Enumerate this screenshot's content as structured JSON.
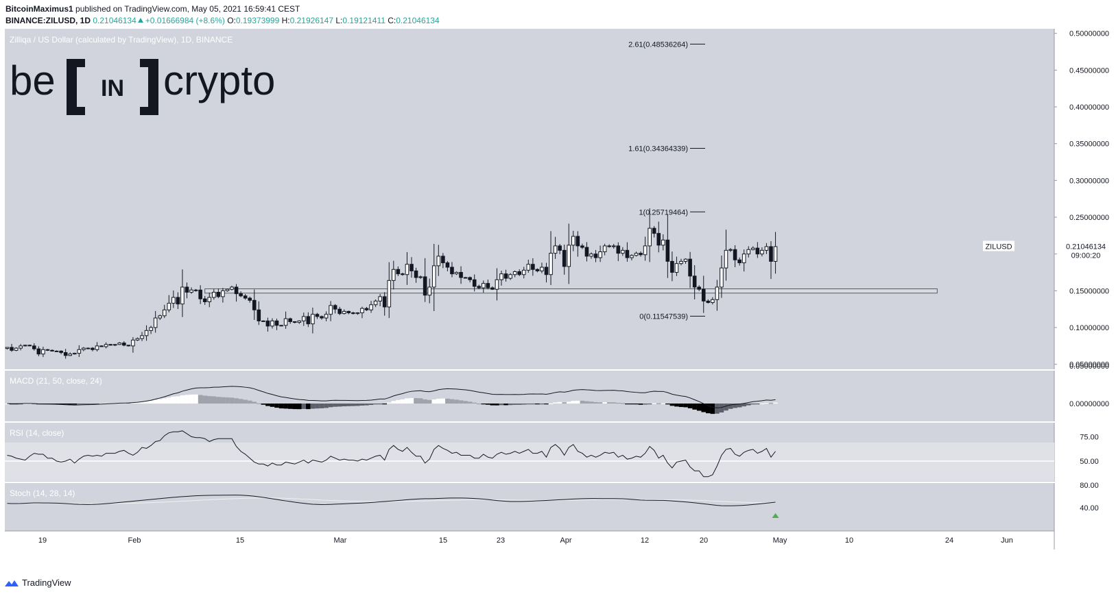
{
  "header": {
    "author": "BitcoinMaximus1",
    "published_text": "published on TradingView.com, May 05, 2021 16:59:41 CEST",
    "symbol_line": "BINANCE:ZILUSD, 1D",
    "last": "0.21046134",
    "change": "+0.01666984 (+8.6%)",
    "o_label": "O:",
    "o": "0.19373999",
    "h_label": "H:",
    "h": "0.21926147",
    "l_label": "L:",
    "l": "0.19121411",
    "c_label": "C:",
    "c": "0.21046134"
  },
  "footer": {
    "brand": "TradingView"
  },
  "colors": {
    "bg": "#d1d4dc",
    "plot": "#d1d4dc",
    "up_fill": "#ffffff",
    "down_fill": "#131722",
    "accent": "#26a69a",
    "signal": "#4caf50"
  },
  "chart_data": {
    "type": "candlestick",
    "title": "Zilliqa / US Dollar (calculated by TradingView), 1D, BINANCE",
    "currency": "USD",
    "watermark": "be[IN]crypto",
    "price_axis": [
      "0.50000000",
      "0.45000000",
      "0.40000000",
      "0.35000000",
      "0.30000000",
      "0.25000000",
      "0.20000000",
      "0.15000000",
      "0.10000000",
      "0.05000000"
    ],
    "ylim": [
      0.0423,
      0.5062
    ],
    "time_axis": [
      "19",
      "Feb",
      "15",
      "Mar",
      "15",
      "23",
      "Apr",
      "12",
      "20",
      "May",
      "10",
      "24",
      "Jun"
    ],
    "last_price_label": {
      "symbol": "ZILUSD",
      "price": "0.21046134",
      "countdown": "09:00:20",
      "value": 0.21046134
    },
    "support_zone": {
      "low": 0.1468,
      "high": 0.1526,
      "from_index": 44,
      "to_index": 207
    },
    "fib_levels": [
      {
        "label": "2.61(0.48536264)",
        "value": 0.48536264
      },
      {
        "label": "1.61(0.34364339)",
        "value": 0.34364339
      },
      {
        "label": "1(0.25719464)",
        "value": 0.25719464
      },
      {
        "label": "0(0.11547539)",
        "value": 0.11547539
      }
    ],
    "closes": [
      0.073,
      0.069,
      0.072,
      0.075,
      0.076,
      0.075,
      0.071,
      0.064,
      0.07,
      0.069,
      0.068,
      0.068,
      0.066,
      0.062,
      0.064,
      0.065,
      0.07,
      0.072,
      0.072,
      0.07,
      0.075,
      0.074,
      0.077,
      0.076,
      0.077,
      0.079,
      0.076,
      0.075,
      0.083,
      0.085,
      0.089,
      0.096,
      0.1,
      0.113,
      0.116,
      0.124,
      0.133,
      0.141,
      0.132,
      0.155,
      0.148,
      0.151,
      0.151,
      0.139,
      0.135,
      0.141,
      0.148,
      0.142,
      0.15,
      0.152,
      0.155,
      0.146,
      0.143,
      0.14,
      0.137,
      0.124,
      0.109,
      0.109,
      0.102,
      0.109,
      0.103,
      0.103,
      0.112,
      0.108,
      0.107,
      0.109,
      0.115,
      0.105,
      0.118,
      0.115,
      0.113,
      0.118,
      0.13,
      0.125,
      0.119,
      0.122,
      0.12,
      0.119,
      0.12,
      0.126,
      0.124,
      0.131,
      0.136,
      0.142,
      0.128,
      0.164,
      0.179,
      0.173,
      0.172,
      0.186,
      0.177,
      0.168,
      0.169,
      0.144,
      0.155,
      0.184,
      0.197,
      0.188,
      0.182,
      0.173,
      0.175,
      0.168,
      0.168,
      0.165,
      0.156,
      0.154,
      0.16,
      0.154,
      0.152,
      0.165,
      0.173,
      0.167,
      0.172,
      0.176,
      0.172,
      0.178,
      0.186,
      0.179,
      0.177,
      0.182,
      0.172,
      0.201,
      0.211,
      0.205,
      0.183,
      0.212,
      0.224,
      0.211,
      0.209,
      0.197,
      0.2,
      0.195,
      0.203,
      0.211,
      0.21,
      0.211,
      0.201,
      0.205,
      0.195,
      0.198,
      0.201,
      0.199,
      0.211,
      0.235,
      0.228,
      0.212,
      0.219,
      0.19,
      0.175,
      0.187,
      0.19,
      0.193,
      0.17,
      0.155,
      0.152,
      0.136,
      0.134,
      0.138,
      0.155,
      0.181,
      0.205,
      0.206,
      0.192,
      0.188,
      0.2,
      0.206,
      0.208,
      0.2,
      0.205,
      0.21,
      0.19,
      0.21
    ],
    "macd": {
      "params": "MACD (21, 50, close, 24)",
      "axis": [
        "0.05000000",
        "0.00000000"
      ]
    },
    "rsi": {
      "params": "RSI (14, close)",
      "axis": [
        "75.00",
        "50.00"
      ],
      "values": [
        56,
        55,
        53,
        52,
        51,
        55,
        58,
        57,
        57,
        53,
        53,
        50,
        49,
        50,
        52,
        48,
        52,
        55,
        56,
        55,
        56,
        55,
        58,
        58,
        58,
        60,
        61,
        58,
        56,
        59,
        64,
        63,
        66,
        70,
        71,
        76,
        79,
        80,
        80,
        81,
        78,
        75,
        74,
        74,
        73,
        70,
        72,
        73,
        73,
        73,
        73,
        65,
        60,
        57,
        53,
        49,
        47,
        47,
        45,
        48,
        46,
        46,
        49,
        48,
        47,
        49,
        51,
        48,
        51,
        50,
        49,
        51,
        55,
        53,
        51,
        52,
        51,
        51,
        50,
        52,
        51,
        53,
        55,
        56,
        51,
        62,
        66,
        62,
        60,
        64,
        59,
        55,
        55,
        48,
        52,
        62,
        66,
        63,
        61,
        58,
        59,
        56,
        56,
        56,
        53,
        53,
        57,
        54,
        53,
        57,
        59,
        57,
        58,
        60,
        58,
        60,
        62,
        58,
        58,
        60,
        54,
        64,
        67,
        63,
        56,
        64,
        67,
        60,
        58,
        54,
        56,
        54,
        56,
        59,
        58,
        59,
        54,
        56,
        52,
        53,
        55,
        54,
        58,
        65,
        61,
        53,
        56,
        48,
        43,
        49,
        50,
        51,
        44,
        40,
        40,
        34,
        34,
        36,
        45,
        56,
        62,
        63,
        57,
        55,
        59,
        61,
        62,
        58,
        60,
        63,
        54,
        60
      ]
    },
    "stoch": {
      "params": "Stoch (14, 28, 14)",
      "axis": [
        "80.00",
        "40.00"
      ]
    },
    "signals": [
      {
        "type": "bullish-cross-arrow",
        "index": 171
      }
    ]
  }
}
